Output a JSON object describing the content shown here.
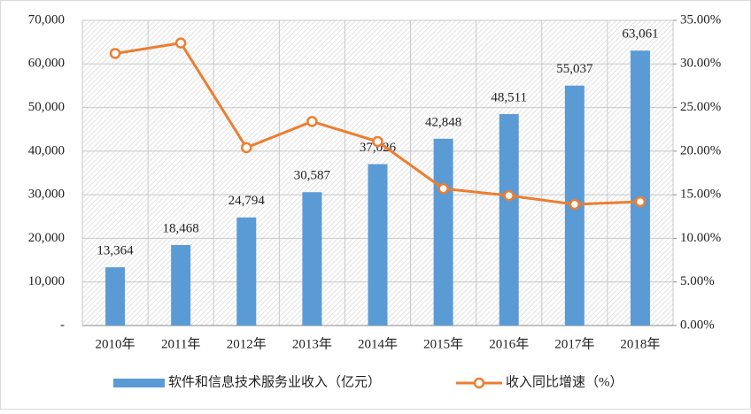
{
  "chart_data": {
    "type": "bar-line",
    "categories": [
      "2010年",
      "2011年",
      "2012年",
      "2013年",
      "2014年",
      "2015年",
      "2016年",
      "2017年",
      "2018年"
    ],
    "series": [
      {
        "name": "软件和信息技术服务业收入（亿元）",
        "type": "bar",
        "color": "#5b9bd5",
        "values": [
          13364,
          18468,
          24794,
          30587,
          37026,
          42848,
          48511,
          55037,
          63061
        ],
        "value_labels": [
          "13,364",
          "18,468",
          "24,794",
          "30,587",
          "37,026",
          "42,848",
          "48,511",
          "55,037",
          "63,061"
        ]
      },
      {
        "name": "收入同比增速（%）",
        "type": "line",
        "axis": "y2",
        "color": "#ed7d31",
        "values": [
          31.2,
          32.4,
          20.4,
          23.4,
          21.1,
          15.7,
          14.9,
          13.9,
          14.2
        ]
      }
    ],
    "ylim": [
      0,
      70000
    ],
    "yticks": [
      {
        "value": 0,
        "label": "-"
      },
      {
        "value": 10000,
        "label": "10,000"
      },
      {
        "value": 20000,
        "label": "20,000"
      },
      {
        "value": 30000,
        "label": "30,000"
      },
      {
        "value": 40000,
        "label": "40,000"
      },
      {
        "value": 50000,
        "label": "50,000"
      },
      {
        "value": 60000,
        "label": "60,000"
      },
      {
        "value": 70000,
        "label": "70,000"
      }
    ],
    "y2lim": [
      0,
      35
    ],
    "y2ticks": [
      {
        "value": 0,
        "label": "0.00%"
      },
      {
        "value": 5,
        "label": "5.00%"
      },
      {
        "value": 10,
        "label": "10.00%"
      },
      {
        "value": 15,
        "label": "15.00%"
      },
      {
        "value": 20,
        "label": "20.00%"
      },
      {
        "value": 25,
        "label": "25.00%"
      },
      {
        "value": 30,
        "label": "30.00%"
      },
      {
        "value": 35,
        "label": "35.00%"
      }
    ],
    "grid": true,
    "legend": "bottom"
  }
}
